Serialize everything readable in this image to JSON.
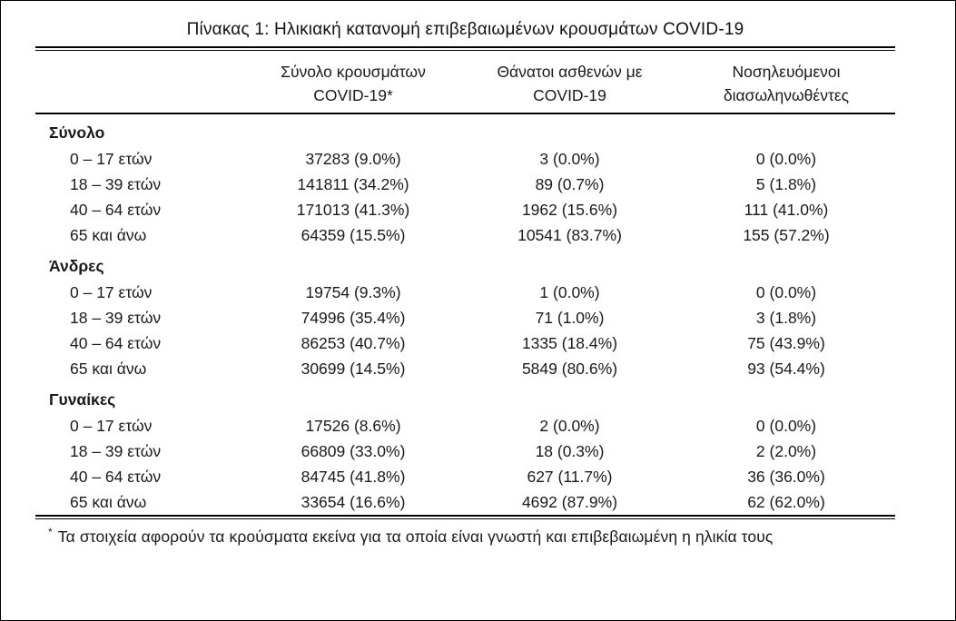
{
  "title": "Πίνακας 1: Ηλικιακή κατανομή επιβεβαιωμένων κρουσμάτων COVID-19",
  "colors": {
    "text": "#1a1a1a",
    "rules": "#000000",
    "background": "#ffffff"
  },
  "table": {
    "columns": [
      {
        "line1": "",
        "line2": ""
      },
      {
        "line1": "Σύνολο κρουσμάτων",
        "line2": "COVID-19*"
      },
      {
        "line1": "Θάνατοι ασθενών με",
        "line2": "COVID-19"
      },
      {
        "line1": "Νοσηλευόμενοι",
        "line2": "διασωληνωθέντες"
      }
    ],
    "sections": [
      {
        "label": "Σύνολο",
        "rows": [
          {
            "label": "0 – 17 ετών",
            "cells": [
              "37283 (9.0%)",
              "3 (0.0%)",
              "0 (0.0%)"
            ]
          },
          {
            "label": "18 – 39 ετών",
            "cells": [
              "141811 (34.2%)",
              "89 (0.7%)",
              "5 (1.8%)"
            ]
          },
          {
            "label": "40 – 64 ετών",
            "cells": [
              "171013 (41.3%)",
              "1962 (15.6%)",
              "111 (41.0%)"
            ]
          },
          {
            "label": "65 και άνω",
            "cells": [
              "64359 (15.5%)",
              "10541 (83.7%)",
              "155 (57.2%)"
            ]
          }
        ]
      },
      {
        "label": "Άνδρες",
        "rows": [
          {
            "label": "0 – 17 ετών",
            "cells": [
              "19754 (9.3%)",
              "1 (0.0%)",
              "0 (0.0%)"
            ]
          },
          {
            "label": "18 – 39 ετών",
            "cells": [
              "74996 (35.4%)",
              "71 (1.0%)",
              "3 (1.8%)"
            ]
          },
          {
            "label": "40 – 64 ετών",
            "cells": [
              "86253 (40.7%)",
              "1335 (18.4%)",
              "75 (43.9%)"
            ]
          },
          {
            "label": "65 και άνω",
            "cells": [
              "30699 (14.5%)",
              "5849 (80.6%)",
              "93 (54.4%)"
            ]
          }
        ]
      },
      {
        "label": "Γυναίκες",
        "rows": [
          {
            "label": "0 – 17 ετών",
            "cells": [
              "17526 (8.6%)",
              "2 (0.0%)",
              "0 (0.0%)"
            ]
          },
          {
            "label": "18 – 39 ετών",
            "cells": [
              "66809 (33.0%)",
              "18 (0.3%)",
              "2 (2.0%)"
            ]
          },
          {
            "label": "40 – 64 ετών",
            "cells": [
              "84745 (41.8%)",
              "627 (11.7%)",
              "36 (36.0%)"
            ]
          },
          {
            "label": "65 και άνω",
            "cells": [
              "33654 (16.6%)",
              "4692 (87.9%)",
              "62 (62.0%)"
            ]
          }
        ]
      }
    ]
  },
  "footnote": {
    "marker": "*",
    "text": "Τα στοιχεία αφορούν τα κρούσματα εκείνα για τα οποία είναι γνωστή και επιβεβαιωμένη η ηλικία τους"
  }
}
